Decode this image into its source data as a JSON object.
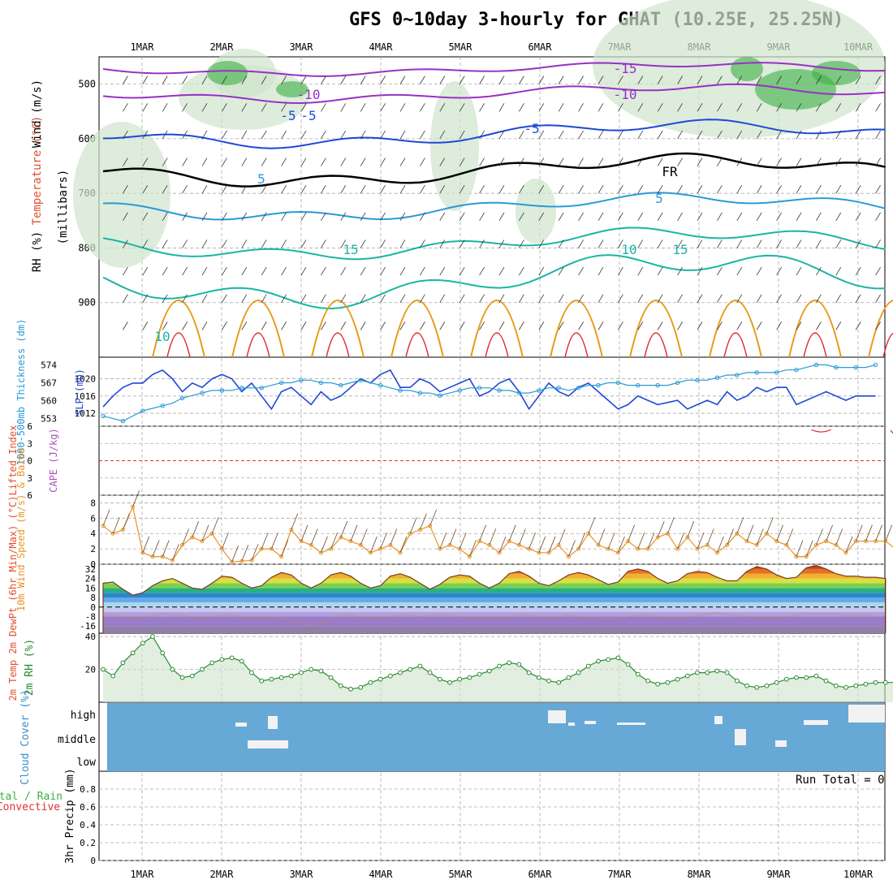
{
  "title": "GFS 0~10day 3-hourly for GHAT (10.25E, 25.25N)",
  "days": [
    "1MAR",
    "2MAR",
    "3MAR",
    "4MAR",
    "5MAR",
    "6MAR",
    "7MAR",
    "8MAR",
    "9MAR",
    "10MAR"
  ],
  "colors": {
    "grid": "#aaaaaa",
    "frame": "#000000",
    "purple": "#9a2fc6",
    "blue": "#1f48d6",
    "lightblue": "#2a9ad6",
    "teal": "#1ab5a5",
    "orange": "#e89a1a",
    "red": "#e03030",
    "rh_fill": "#cfe4cc",
    "rh_green": "#3cb043",
    "cloud": "#66a8d6",
    "wind_line": "#e8942a",
    "barb": "#6b4a2a"
  },
  "chart_data": [
    {
      "type": "contour",
      "id": "upper_air",
      "ylabel_segments": [
        "Wind (m/s)",
        "Temperature (°C)",
        "RH (%)"
      ],
      "axis_label": "(millibars)",
      "y_ticks": [
        500,
        600,
        700,
        800,
        900
      ],
      "ylim": [
        1000,
        450
      ],
      "contour_labels": [
        "-15",
        "-10",
        "-10",
        "-5",
        "-5",
        "-5",
        "5",
        "5",
        "10",
        "10",
        "15",
        "15",
        "FR"
      ]
    },
    {
      "type": "line",
      "id": "thickness_slp",
      "ylabel_left": "1000-500mb Thickness (dm)",
      "ylabel_right": "SLP (mb)",
      "left_ticks": [
        553,
        560,
        567,
        574
      ],
      "right_ticks": [
        1012,
        1016,
        1020
      ],
      "slp": [
        1013.5,
        1016,
        1018,
        1019,
        1019,
        1021,
        1022,
        1020,
        1017,
        1019,
        1018,
        1020,
        1021,
        1020,
        1017,
        1019,
        1016,
        1013,
        1017,
        1018,
        1016,
        1014,
        1017,
        1015,
        1016,
        1018,
        1020,
        1019,
        1021,
        1022,
        1018,
        1018,
        1020,
        1019,
        1017,
        1018,
        1019,
        1020,
        1016,
        1017,
        1019,
        1020,
        1017,
        1013,
        1016,
        1019,
        1017,
        1016,
        1018,
        1019,
        1017,
        1015,
        1013,
        1014,
        1016,
        1015,
        1014,
        1014.5,
        1015,
        1013,
        1014,
        1015,
        1014,
        1017,
        1015,
        1016,
        1018,
        1017,
        1018,
        1018,
        1014,
        1015,
        1016,
        1017,
        1016,
        1015,
        1016,
        1016,
        1016
      ],
      "thickness": [
        554,
        553,
        552,
        554,
        556,
        557,
        558,
        559,
        561,
        562,
        563,
        564,
        564,
        564,
        565,
        565,
        565,
        566,
        567,
        567,
        568,
        568,
        567,
        567,
        566,
        567,
        568,
        567,
        566,
        565,
        564,
        564,
        563,
        563,
        562,
        563,
        564,
        565,
        565,
        565,
        564,
        564,
        563,
        563,
        564,
        565,
        565,
        564,
        565,
        566,
        566,
        567,
        567,
        566,
        566,
        566,
        566,
        566,
        567,
        568,
        568,
        568,
        569,
        570,
        570,
        571,
        571,
        571,
        571,
        572,
        572,
        573,
        574,
        574,
        573,
        573,
        573,
        573,
        574
      ],
      "ylim_left": [
        550,
        577
      ],
      "ylim_right": [
        1009,
        1025
      ]
    },
    {
      "type": "line",
      "id": "instability",
      "ylabel_left": "Lifted Index",
      "ylabel_right": "CAPE (J/kg)",
      "left_ticks": [
        -6,
        -3,
        0,
        3,
        6
      ],
      "ylim": [
        -6,
        6
      ],
      "cape_segments": [
        {
          "x": [
            71.5,
            72,
            72.5,
            73,
            73.5
          ],
          "y": [
            5.4,
            5.1,
            5.0,
            5.1,
            5.4
          ]
        },
        {
          "x": [
            79.5,
            80,
            80.5,
            81,
            81.5
          ],
          "y": [
            5.3,
            4.3,
            4.1,
            4.3,
            5.2
          ]
        }
      ]
    },
    {
      "type": "line",
      "id": "wind10m",
      "ylabel": "10m Wind Speed (m/s) & Barbs",
      "y_ticks": [
        0,
        2,
        4,
        6,
        8
      ],
      "ylim": [
        0,
        9
      ],
      "values": [
        5,
        4,
        4.5,
        7.5,
        1.5,
        1,
        1,
        0.5,
        2.5,
        3.5,
        3,
        4,
        2,
        0.3,
        0.4,
        0.5,
        2,
        2,
        1,
        4.5,
        3,
        2.5,
        1.5,
        2,
        3.5,
        3,
        2.5,
        1.5,
        2,
        2.5,
        1.5,
        4,
        4.5,
        5,
        2,
        2.5,
        2,
        1,
        3,
        2.5,
        1.5,
        3,
        2.5,
        2,
        1.5,
        1.5,
        2.5,
        1,
        2,
        4,
        2.5,
        2,
        1.5,
        3,
        2,
        2,
        3.5,
        4,
        2,
        3.5,
        2,
        2.5,
        1.5,
        2.5,
        4,
        3,
        2.5,
        4,
        3,
        2.5,
        1,
        1,
        2.5,
        3,
        2.5,
        1.5,
        3,
        3,
        3,
        3,
        2,
        3,
        3,
        2.8,
        3.5,
        6
      ]
    },
    {
      "type": "area",
      "id": "temp2m",
      "ylabel": "2m Temp 2m DewPt (6hr Min/Max) (°C)",
      "y_ticks": [
        -16,
        -8,
        0,
        8,
        16,
        24,
        32
      ],
      "ylim": [
        -22,
        36
      ],
      "temp": [
        20,
        21,
        15,
        10,
        12,
        18,
        22,
        24,
        20,
        16,
        15,
        20,
        26,
        25,
        20,
        16,
        18,
        25,
        29,
        27,
        20,
        16,
        20,
        27,
        29,
        26,
        20,
        16,
        18,
        26,
        28,
        25,
        20,
        15,
        19,
        25,
        27,
        26,
        20,
        16,
        20,
        28,
        30,
        26,
        20,
        18,
        22,
        27,
        29,
        27,
        23,
        19,
        21,
        30,
        32,
        30,
        24,
        20,
        22,
        28,
        30,
        29,
        25,
        22,
        22,
        30,
        34,
        32,
        27,
        24,
        25,
        33,
        35,
        32,
        28,
        26,
        26,
        25,
        25,
        24
      ],
      "dewpt": [
        -7,
        -7,
        -8,
        -8,
        -8,
        -7,
        -6,
        -7,
        -7,
        -8,
        -8,
        -8,
        -7,
        -7,
        -8,
        -8,
        -8,
        -8,
        -9,
        -11,
        -14,
        -15,
        -13,
        -9,
        -7,
        -7,
        -8,
        -8,
        -8,
        -8,
        -7,
        -7,
        -8,
        -7,
        -7,
        -7,
        -8,
        -8,
        -8,
        -8,
        -8,
        -8,
        -7,
        -7,
        -8,
        -8,
        -8,
        -7,
        -8,
        -9,
        -9,
        -10,
        -9,
        -8,
        -7,
        -7,
        -8,
        -9,
        -9,
        -8,
        -7,
        -6,
        -5,
        -6,
        -7,
        -8,
        -8,
        -8,
        -8,
        -8,
        -7,
        -6,
        -6,
        -6,
        -6,
        -7,
        -7,
        -7,
        -7
      ]
    },
    {
      "type": "area",
      "id": "rh2m",
      "ylabel": "2m RH (%)",
      "y_ticks": [
        20,
        40
      ],
      "ylim": [
        0,
        42
      ],
      "values": [
        20,
        16,
        24,
        30,
        36,
        40,
        30,
        20,
        15,
        16,
        20,
        24,
        26,
        27,
        25,
        18,
        13,
        14,
        15,
        16,
        18,
        20,
        19,
        15,
        10,
        8,
        9,
        12,
        14,
        16,
        18,
        20,
        22,
        18,
        14,
        12,
        14,
        15,
        17,
        19,
        22,
        24,
        23,
        18,
        15,
        13,
        12,
        15,
        18,
        22,
        25,
        26,
        27,
        23,
        17,
        13,
        11,
        12,
        14,
        16,
        18,
        18,
        19,
        18,
        13,
        10,
        9,
        10,
        12,
        14,
        15,
        15,
        16,
        13,
        10,
        9,
        10,
        11,
        12,
        12,
        12,
        13
      ]
    },
    {
      "type": "heatmap",
      "id": "cloud",
      "ylabel": "Cloud Cover (%)",
      "levels": [
        "high",
        "middle",
        "low"
      ]
    },
    {
      "type": "bar",
      "id": "precip",
      "ylabel_parts": [
        "Total / Rain",
        "Convective",
        "3hr Precip (mm)"
      ],
      "y_ticks": [
        0,
        0.2,
        0.4,
        0.6,
        0.8
      ],
      "ylim": [
        0,
        1
      ],
      "run_total_label": "Run Total = 0"
    }
  ]
}
